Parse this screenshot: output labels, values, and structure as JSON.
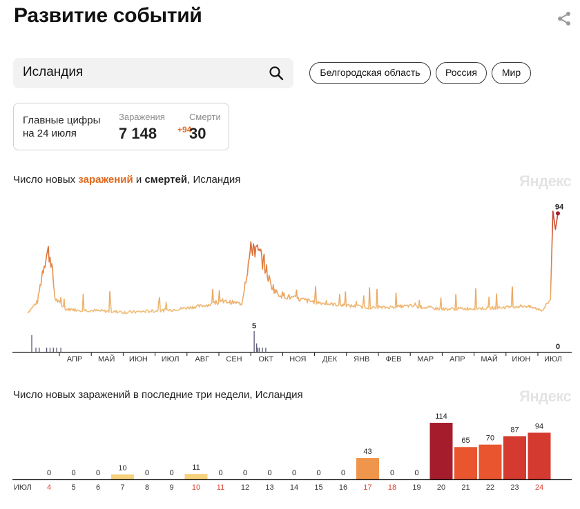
{
  "header": {
    "title": "Развитие событий"
  },
  "search": {
    "value": "Исландия"
  },
  "regions": [
    {
      "label": "Белгородская область"
    },
    {
      "label": "Россия"
    },
    {
      "label": "Мир"
    }
  ],
  "summary": {
    "label_line1": "Главные цифры",
    "label_line2": "на 24 июля",
    "cases_caption": "Заражения",
    "cases_value": "7 148",
    "cases_delta": "+94",
    "deaths_caption": "Смерти",
    "deaths_value": "30"
  },
  "watermark": "Яндекс",
  "colors": {
    "infections_accent": "#e0681c",
    "grid": "#111111",
    "deaths": "#4a4a6a"
  },
  "chart_data": [
    {
      "type": "line",
      "title_parts": {
        "prefix": "Число новых ",
        "infections": "заражений",
        "middle": " и ",
        "deaths": "смертей",
        "suffix": ", Исландия"
      },
      "x_tick_labels": [
        "АПР",
        "МАЙ",
        "ИЮН",
        "ИЮЛ",
        "АВГ",
        "СЕН",
        "ОКТ",
        "НОЯ",
        "ДЕК",
        "ЯНВ",
        "ФЕВ",
        "МАР",
        "АПР",
        "МАЙ",
        "ИЮН",
        "ИЮЛ"
      ],
      "series": [
        {
          "name": "заражения",
          "key_points": [
            [
              0,
              2
            ],
            [
              12,
              12
            ],
            [
              18,
              40
            ],
            [
              22,
              55
            ],
            [
              25,
              58
            ],
            [
              28,
              52
            ],
            [
              33,
              15
            ],
            [
              45,
              5
            ],
            [
              120,
              2
            ],
            [
              170,
              4
            ],
            [
              210,
              8
            ],
            [
              240,
              12
            ],
            [
              258,
              10
            ],
            [
              262,
              30
            ],
            [
              268,
              56
            ],
            [
              272,
              65
            ],
            [
              276,
              58
            ],
            [
              280,
              55
            ],
            [
              285,
              48
            ],
            [
              292,
              30
            ],
            [
              300,
              20
            ],
            [
              320,
              15
            ],
            [
              360,
              10
            ],
            [
              420,
              6
            ],
            [
              460,
              8
            ],
            [
              500,
              5
            ],
            [
              560,
              6
            ],
            [
              600,
              8
            ],
            [
              620,
              4
            ],
            [
              630,
              14
            ],
            [
              633,
              96
            ],
            [
              636,
              79
            ],
            [
              639,
              94
            ]
          ],
          "annotations": [
            {
              "label": "94"
            }
          ]
        },
        {
          "name": "смерти",
          "annotations": [
            {
              "label": "5"
            },
            {
              "label": "0"
            }
          ]
        }
      ]
    },
    {
      "type": "bar",
      "title": "Число новых заражений в последние три недели, Исландия",
      "categories": [
        "4",
        "5",
        "6",
        "7",
        "8",
        "9",
        "10",
        "11",
        "12",
        "13",
        "14",
        "15",
        "16",
        "17",
        "18",
        "19",
        "20",
        "21",
        "22",
        "23",
        "24"
      ],
      "weekend": [
        true,
        false,
        false,
        false,
        false,
        false,
        true,
        true,
        false,
        false,
        false,
        false,
        false,
        true,
        true,
        false,
        false,
        false,
        false,
        false,
        true
      ],
      "axis_prefix": "ИЮЛ",
      "values": [
        0,
        0,
        0,
        10,
        0,
        0,
        11,
        0,
        0,
        0,
        0,
        0,
        0,
        43,
        0,
        0,
        114,
        65,
        70,
        87,
        94
      ],
      "ylim": [
        0,
        114
      ]
    }
  ]
}
